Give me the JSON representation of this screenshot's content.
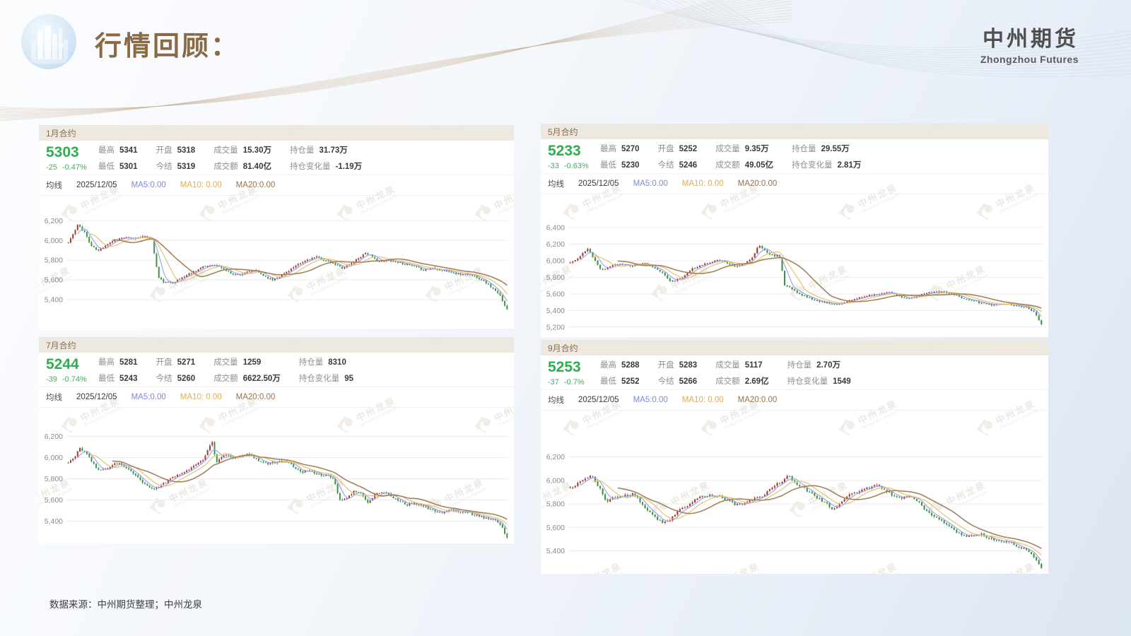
{
  "page": {
    "title": "行情回顾：",
    "brand": {
      "name": "中州期货",
      "name_en": "Zhongzhou Futures"
    },
    "footer": {
      "source_note": "数据来源：中州期货整理；中州龙泉"
    },
    "watermark": {
      "text": "中州龙泉",
      "text_en": "Zhongzhou Longquan"
    }
  },
  "colors": {
    "up_candle": "#a03a32",
    "down_candle": "#3d9149",
    "ma5_line": "#96a0e8",
    "ma10_line": "#e4bd6a",
    "ma20_line": "#a5825c",
    "accent_brown": "#8b6c48",
    "price_green": "#2fae4f",
    "panel_header_bg": "#ece7de",
    "grid_line": "#ececec"
  },
  "panels": [
    {
      "title": "1月合约",
      "price": "5303",
      "change": "-25",
      "change_pct": "-0.47%",
      "stats": [
        {
          "label": "最高",
          "value": "5341"
        },
        {
          "label": "开盘",
          "value": "5318"
        },
        {
          "label": "成交量",
          "value": "15.30万"
        },
        {
          "label": "持仓量",
          "value": "31.73万"
        },
        {
          "label": "最低",
          "value": "5301"
        },
        {
          "label": "今结",
          "value": "5319"
        },
        {
          "label": "成交额",
          "value": "81.40亿"
        },
        {
          "label": "持仓变化量",
          "value": "-1.19万"
        }
      ],
      "ma_row": {
        "label": "均线",
        "date": "2025/12/05",
        "ma5": "MA5:0.00",
        "ma10": "MA10: 0.00",
        "ma20": "MA20:0.00"
      }
    },
    {
      "title": "5月合约",
      "price": "5233",
      "change": "-33",
      "change_pct": "-0.63%",
      "stats": [
        {
          "label": "最高",
          "value": "5270"
        },
        {
          "label": "开盘",
          "value": "5252"
        },
        {
          "label": "成交量",
          "value": "9.35万"
        },
        {
          "label": "持仓量",
          "value": "29.55万"
        },
        {
          "label": "最低",
          "value": "5230"
        },
        {
          "label": "今结",
          "value": "5246"
        },
        {
          "label": "成交额",
          "value": "49.05亿"
        },
        {
          "label": "持仓变化量",
          "value": "2.81万"
        }
      ],
      "ma_row": {
        "label": "均线",
        "date": "2025/12/05",
        "ma5": "MA5:0.00",
        "ma10": "MA10: 0.00",
        "ma20": "MA20:0.00"
      }
    },
    {
      "title": "7月合约",
      "price": "5244",
      "change": "-39",
      "change_pct": "-0.74%",
      "stats": [
        {
          "label": "最高",
          "value": "5281"
        },
        {
          "label": "开盘",
          "value": "5271"
        },
        {
          "label": "成交量",
          "value": "1259"
        },
        {
          "label": "持仓量",
          "value": "8310"
        },
        {
          "label": "最低",
          "value": "5243"
        },
        {
          "label": "今结",
          "value": "5260"
        },
        {
          "label": "成交额",
          "value": "6622.50万"
        },
        {
          "label": "持仓变化量",
          "value": "95"
        }
      ],
      "ma_row": {
        "label": "均线",
        "date": "2025/12/05",
        "ma5": "MA5:0.00",
        "ma10": "MA10: 0.00",
        "ma20": "MA20:0.00"
      }
    },
    {
      "title": "9月合约",
      "price": "5253",
      "change": "-37",
      "change_pct": "-0.7%",
      "stats": [
        {
          "label": "最高",
          "value": "5288"
        },
        {
          "label": "开盘",
          "value": "5283"
        },
        {
          "label": "成交量",
          "value": "5117"
        },
        {
          "label": "持仓量",
          "value": "2.70万"
        },
        {
          "label": "最低",
          "value": "5252"
        },
        {
          "label": "今结",
          "value": "5266"
        },
        {
          "label": "成交额",
          "value": "2.69亿"
        },
        {
          "label": "持仓变化量",
          "value": "1549"
        }
      ],
      "ma_row": {
        "label": "均线",
        "date": "2025/12/05",
        "ma5": "MA5:0.00",
        "ma10": "MA10: 0.00",
        "ma20": "MA20:0.00"
      }
    }
  ],
  "chart_data": [
    {
      "type": "candlestick",
      "title": "1月合约",
      "legend": [
        "MA5",
        "MA10",
        "MA20"
      ],
      "grid": true,
      "ylim": [
        5150,
        6410
      ],
      "yticks": [
        5400,
        5600,
        5800,
        6000,
        6200
      ],
      "last_close": 5303,
      "num_candles": 190,
      "seed": 11,
      "close_trend": [
        [
          0,
          5980
        ],
        [
          0.012,
          6070
        ],
        [
          0.022,
          6160
        ],
        [
          0.038,
          6080
        ],
        [
          0.05,
          5955
        ],
        [
          0.068,
          5890
        ],
        [
          0.085,
          5955
        ],
        [
          0.105,
          6005
        ],
        [
          0.125,
          6030
        ],
        [
          0.145,
          6015
        ],
        [
          0.165,
          6040
        ],
        [
          0.19,
          6025
        ],
        [
          0.205,
          5625
        ],
        [
          0.22,
          5570
        ],
        [
          0.24,
          5580
        ],
        [
          0.262,
          5630
        ],
        [
          0.285,
          5685
        ],
        [
          0.305,
          5725
        ],
        [
          0.325,
          5755
        ],
        [
          0.345,
          5735
        ],
        [
          0.365,
          5680
        ],
        [
          0.385,
          5650
        ],
        [
          0.405,
          5672
        ],
        [
          0.425,
          5700
        ],
        [
          0.445,
          5645
        ],
        [
          0.465,
          5600
        ],
        [
          0.485,
          5645
        ],
        [
          0.505,
          5705
        ],
        [
          0.525,
          5755
        ],
        [
          0.545,
          5805
        ],
        [
          0.565,
          5830
        ],
        [
          0.585,
          5800
        ],
        [
          0.605,
          5762
        ],
        [
          0.625,
          5722
        ],
        [
          0.645,
          5765
        ],
        [
          0.662,
          5825
        ],
        [
          0.678,
          5878
        ],
        [
          0.695,
          5822
        ],
        [
          0.712,
          5782
        ],
        [
          0.73,
          5802
        ],
        [
          0.75,
          5782
        ],
        [
          0.77,
          5758
        ],
        [
          0.79,
          5732
        ],
        [
          0.81,
          5702
        ],
        [
          0.83,
          5722
        ],
        [
          0.85,
          5702
        ],
        [
          0.87,
          5682
        ],
        [
          0.89,
          5652
        ],
        [
          0.91,
          5662
        ],
        [
          0.93,
          5632
        ],
        [
          0.95,
          5582
        ],
        [
          0.97,
          5502
        ],
        [
          0.985,
          5432
        ],
        [
          1,
          5303
        ]
      ]
    },
    {
      "type": "candlestick",
      "title": "5月合约",
      "legend": [
        "MA5",
        "MA10",
        "MA20"
      ],
      "grid": true,
      "ylim": [
        5130,
        6750
      ],
      "yticks": [
        5200,
        5400,
        5600,
        5800,
        6000,
        6200,
        6400
      ],
      "last_close": 5233,
      "num_candles": 190,
      "seed": 22,
      "close_trend": [
        [
          0,
          5975
        ],
        [
          0.018,
          6040
        ],
        [
          0.037,
          6140
        ],
        [
          0.055,
          5990
        ],
        [
          0.066,
          5885
        ],
        [
          0.088,
          5945
        ],
        [
          0.11,
          5958
        ],
        [
          0.13,
          5942
        ],
        [
          0.154,
          5975
        ],
        [
          0.175,
          5930
        ],
        [
          0.195,
          5862
        ],
        [
          0.213,
          5755
        ],
        [
          0.235,
          5788
        ],
        [
          0.257,
          5898
        ],
        [
          0.28,
          5948
        ],
        [
          0.31,
          6008
        ],
        [
          0.33,
          5988
        ],
        [
          0.345,
          5932
        ],
        [
          0.37,
          5958
        ],
        [
          0.385,
          6032
        ],
        [
          0.4,
          6188
        ],
        [
          0.418,
          6102
        ],
        [
          0.432,
          6052
        ],
        [
          0.443,
          6082
        ],
        [
          0.455,
          5705
        ],
        [
          0.468,
          5668
        ],
        [
          0.485,
          5602
        ],
        [
          0.515,
          5528
        ],
        [
          0.545,
          5495
        ],
        [
          0.566,
          5468
        ],
        [
          0.588,
          5518
        ],
        [
          0.62,
          5558
        ],
        [
          0.647,
          5592
        ],
        [
          0.676,
          5618
        ],
        [
          0.706,
          5558
        ],
        [
          0.72,
          5542
        ],
        [
          0.75,
          5598
        ],
        [
          0.78,
          5628
        ],
        [
          0.8,
          5618
        ],
        [
          0.83,
          5558
        ],
        [
          0.868,
          5498
        ],
        [
          0.897,
          5468
        ],
        [
          0.926,
          5482
        ],
        [
          0.95,
          5458
        ],
        [
          0.97,
          5438
        ],
        [
          0.985,
          5378
        ],
        [
          1,
          5233
        ]
      ]
    },
    {
      "type": "candlestick",
      "title": "7月合约",
      "legend": [
        "MA5",
        "MA10",
        "MA20"
      ],
      "grid": true,
      "ylim": [
        5230,
        6430
      ],
      "yticks": [
        5400,
        5600,
        5800,
        6000,
        6200
      ],
      "last_close": 5244,
      "num_candles": 190,
      "seed": 33,
      "close_trend": [
        [
          0,
          5950
        ],
        [
          0.012,
          5992
        ],
        [
          0.025,
          6088
        ],
        [
          0.04,
          6042
        ],
        [
          0.055,
          5952
        ],
        [
          0.07,
          5872
        ],
        [
          0.085,
          5892
        ],
        [
          0.1,
          5932
        ],
        [
          0.115,
          5948
        ],
        [
          0.13,
          5902
        ],
        [
          0.145,
          5862
        ],
        [
          0.16,
          5802
        ],
        [
          0.175,
          5742
        ],
        [
          0.19,
          5705
        ],
        [
          0.205,
          5722
        ],
        [
          0.22,
          5762
        ],
        [
          0.235,
          5802
        ],
        [
          0.25,
          5832
        ],
        [
          0.265,
          5872
        ],
        [
          0.28,
          5902
        ],
        [
          0.295,
          5952
        ],
        [
          0.308,
          5972
        ],
        [
          0.32,
          6090
        ],
        [
          0.328,
          6140
        ],
        [
          0.336,
          5958
        ],
        [
          0.35,
          6002
        ],
        [
          0.365,
          6028
        ],
        [
          0.38,
          5992
        ],
        [
          0.395,
          6012
        ],
        [
          0.41,
          6028
        ],
        [
          0.425,
          5998
        ],
        [
          0.44,
          5962
        ],
        [
          0.455,
          5938
        ],
        [
          0.47,
          5958
        ],
        [
          0.485,
          5972
        ],
        [
          0.5,
          5948
        ],
        [
          0.515,
          5912
        ],
        [
          0.53,
          5858
        ],
        [
          0.55,
          5875
        ],
        [
          0.57,
          5845
        ],
        [
          0.59,
          5825
        ],
        [
          0.605,
          5812
        ],
        [
          0.617,
          5602
        ],
        [
          0.635,
          5615
        ],
        [
          0.652,
          5682
        ],
        [
          0.668,
          5662
        ],
        [
          0.682,
          5575
        ],
        [
          0.7,
          5652
        ],
        [
          0.715,
          5682
        ],
        [
          0.73,
          5652
        ],
        [
          0.75,
          5602
        ],
        [
          0.77,
          5555
        ],
        [
          0.79,
          5565
        ],
        [
          0.81,
          5545
        ],
        [
          0.83,
          5505
        ],
        [
          0.85,
          5482
        ],
        [
          0.87,
          5505
        ],
        [
          0.89,
          5492
        ],
        [
          0.91,
          5482
        ],
        [
          0.93,
          5455
        ],
        [
          0.95,
          5432
        ],
        [
          0.97,
          5412
        ],
        [
          0.985,
          5372
        ],
        [
          1,
          5244
        ]
      ]
    },
    {
      "type": "candlestick",
      "title": "9月合约",
      "legend": [
        "MA5",
        "MA10",
        "MA20"
      ],
      "grid": true,
      "ylim": [
        5240,
        6560
      ],
      "yticks": [
        5400,
        5600,
        5800,
        6000,
        6200
      ],
      "last_close": 5253,
      "num_candles": 190,
      "seed": 44,
      "close_trend": [
        [
          0,
          5932
        ],
        [
          0.015,
          5972
        ],
        [
          0.03,
          6012
        ],
        [
          0.045,
          6042
        ],
        [
          0.06,
          5952
        ],
        [
          0.075,
          5822
        ],
        [
          0.09,
          5852
        ],
        [
          0.105,
          5862
        ],
        [
          0.12,
          5872
        ],
        [
          0.135,
          5882
        ],
        [
          0.155,
          5782
        ],
        [
          0.175,
          5712
        ],
        [
          0.195,
          5638
        ],
        [
          0.21,
          5662
        ],
        [
          0.23,
          5742
        ],
        [
          0.25,
          5782
        ],
        [
          0.27,
          5852
        ],
        [
          0.29,
          5872
        ],
        [
          0.31,
          5872
        ],
        [
          0.33,
          5842
        ],
        [
          0.35,
          5792
        ],
        [
          0.37,
          5802
        ],
        [
          0.39,
          5842
        ],
        [
          0.41,
          5872
        ],
        [
          0.43,
          5952
        ],
        [
          0.45,
          5992
        ],
        [
          0.463,
          6042
        ],
        [
          0.478,
          5972
        ],
        [
          0.49,
          5952
        ],
        [
          0.507,
          5902
        ],
        [
          0.525,
          5852
        ],
        [
          0.544,
          5802
        ],
        [
          0.558,
          5752
        ],
        [
          0.575,
          5822
        ],
        [
          0.59,
          5872
        ],
        [
          0.61,
          5902
        ],
        [
          0.628,
          5932
        ],
        [
          0.65,
          5958
        ],
        [
          0.67,
          5912
        ],
        [
          0.69,
          5862
        ],
        [
          0.705,
          5852
        ],
        [
          0.72,
          5872
        ],
        [
          0.74,
          5812
        ],
        [
          0.76,
          5722
        ],
        [
          0.785,
          5662
        ],
        [
          0.805,
          5602
        ],
        [
          0.823,
          5552
        ],
        [
          0.845,
          5522
        ],
        [
          0.87,
          5542
        ],
        [
          0.895,
          5502
        ],
        [
          0.915,
          5482
        ],
        [
          0.94,
          5462
        ],
        [
          0.96,
          5422
        ],
        [
          0.977,
          5382
        ],
        [
          0.99,
          5322
        ],
        [
          1,
          5253
        ]
      ]
    }
  ]
}
